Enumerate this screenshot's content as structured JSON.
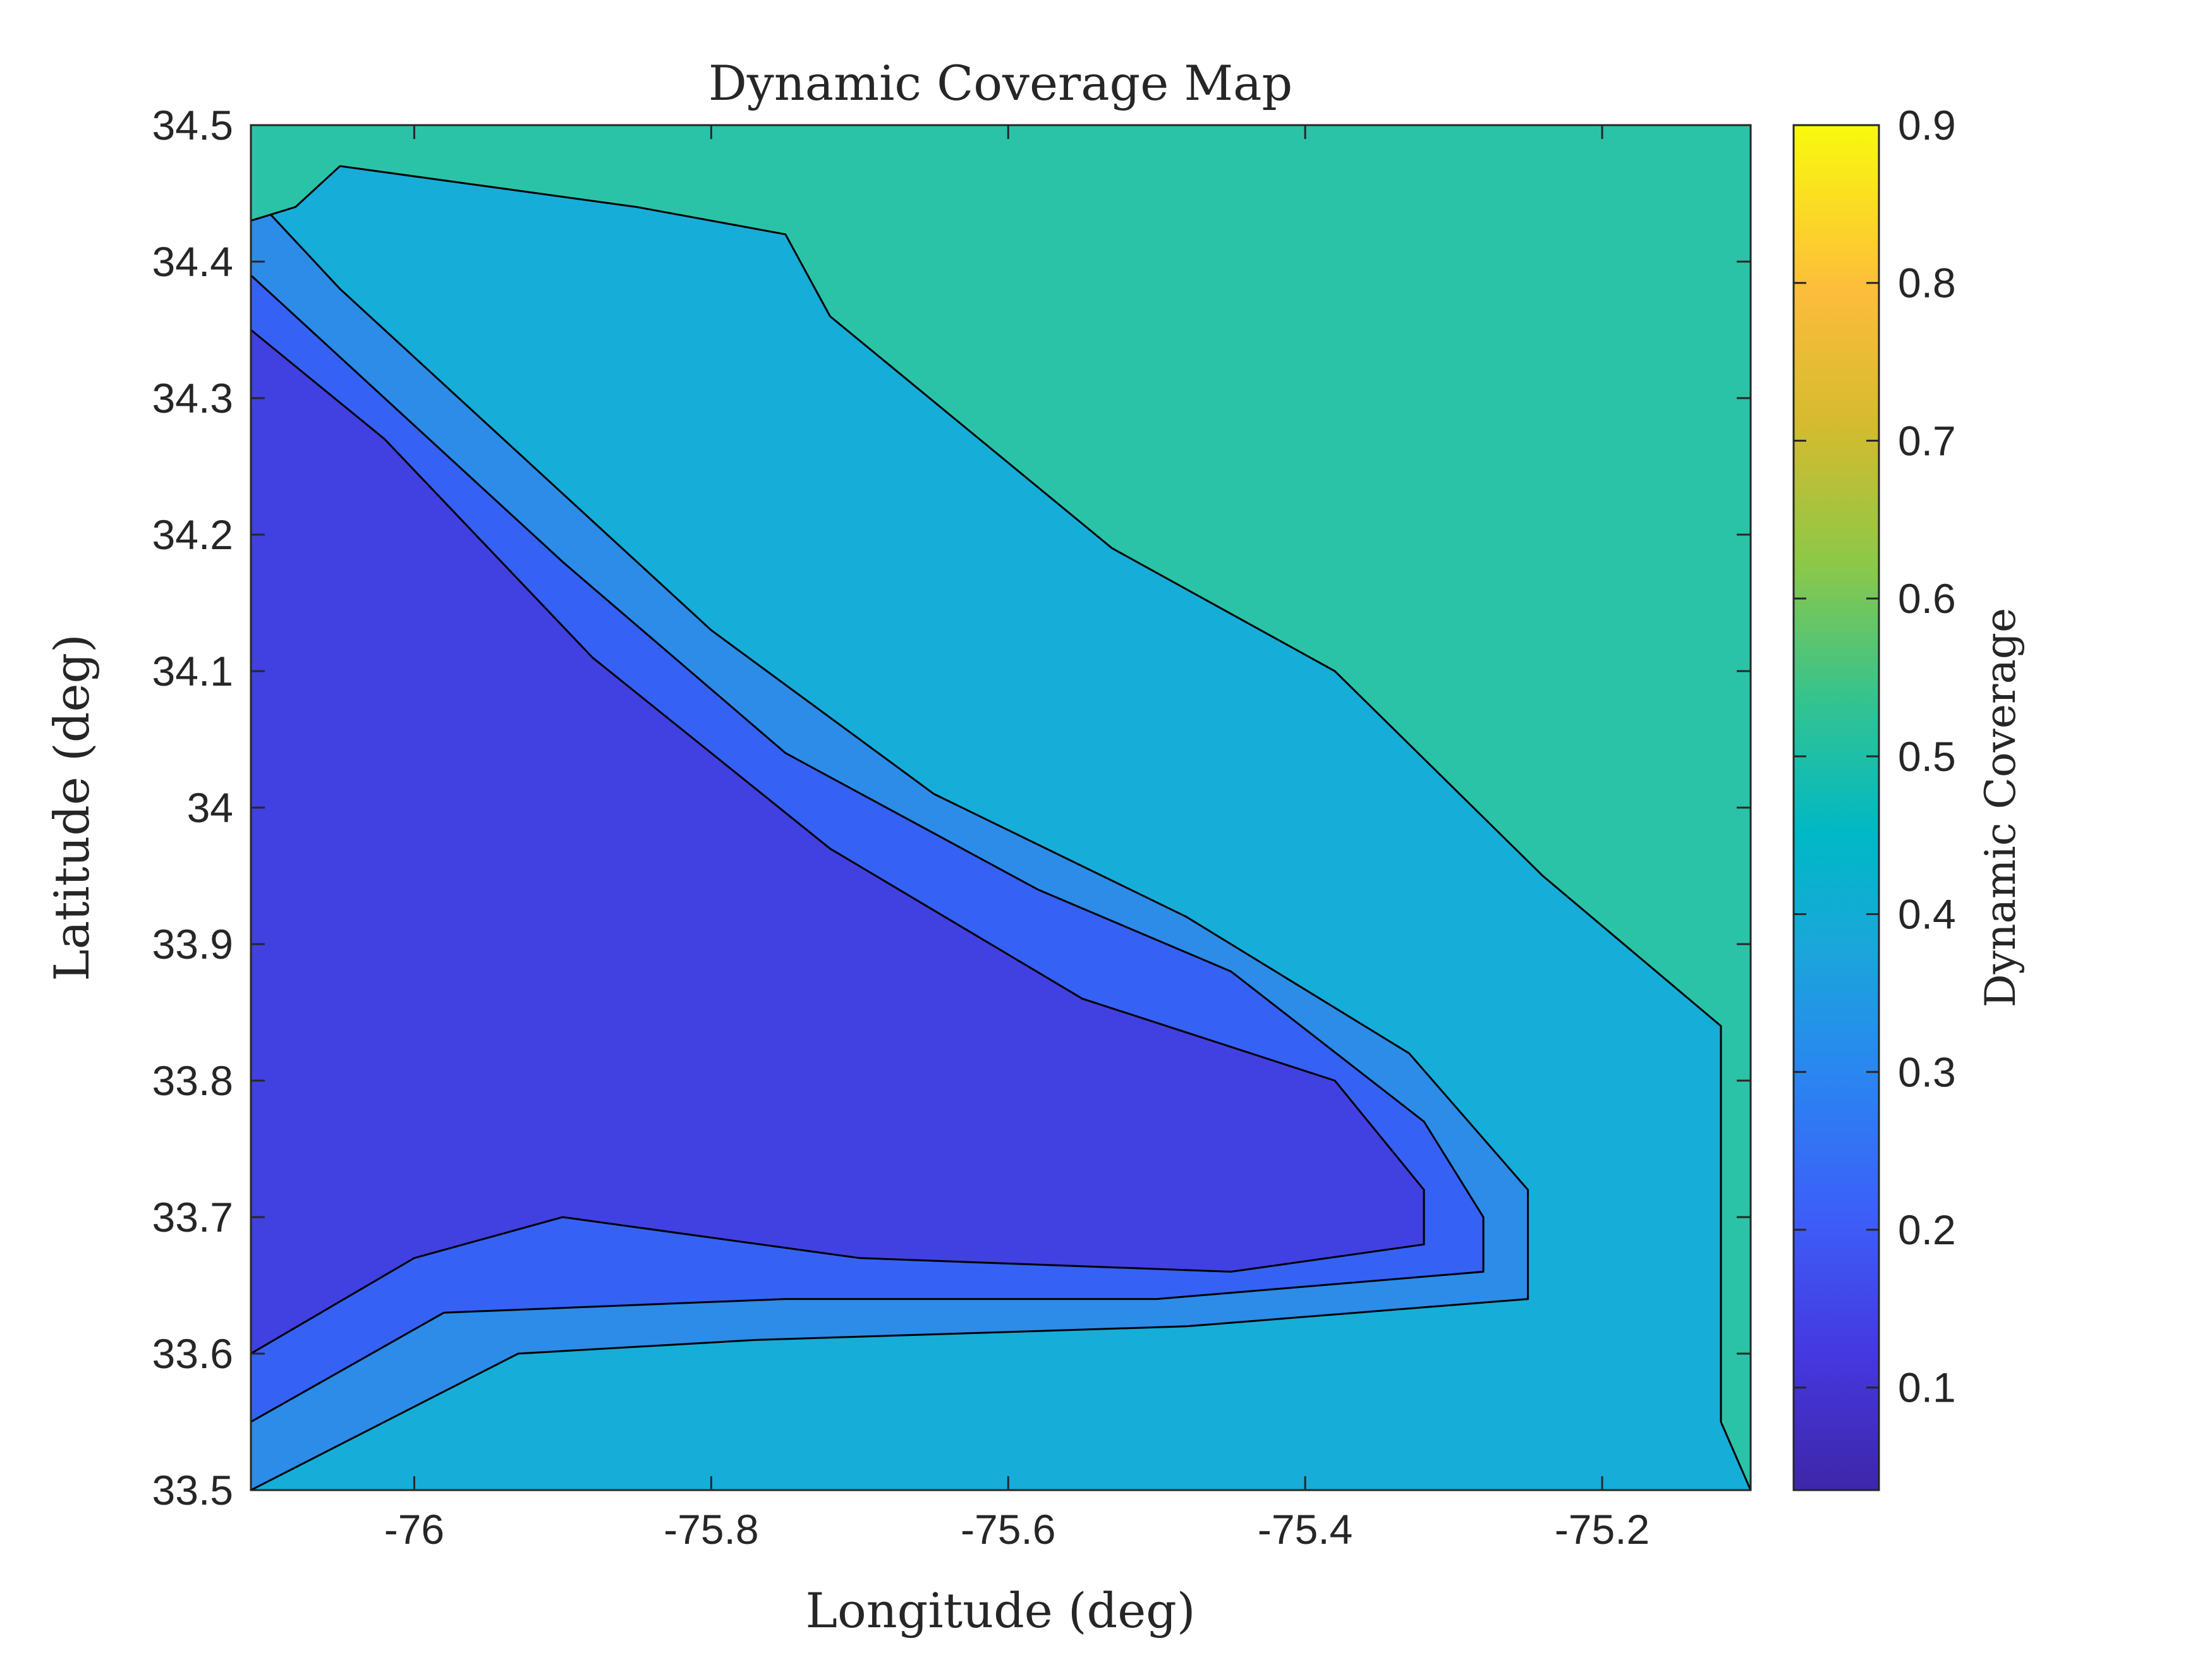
{
  "chart_data": {
    "type": "heatmap",
    "subtype": "filled-contour",
    "title": "Dynamic Coverage Map",
    "xlabel": "Longitude (deg)",
    "ylabel": "Latitude (deg)",
    "xlim": [
      -76.11,
      -75.1
    ],
    "ylim": [
      33.5,
      34.5
    ],
    "xticks": [
      -76,
      -75.8,
      -75.6,
      -75.4,
      -75.2
    ],
    "xtick_labels": [
      "-76",
      "-75.8",
      "-75.6",
      "-75.4",
      "-75.2"
    ],
    "yticks": [
      33.5,
      33.6,
      33.7,
      33.8,
      33.9,
      34,
      34.1,
      34.2,
      34.3,
      34.4,
      34.5
    ],
    "ytick_labels": [
      "33.5",
      "33.6",
      "33.7",
      "33.8",
      "33.9",
      "34",
      "34.1",
      "34.2",
      "34.3",
      "34.4",
      "34.5"
    ],
    "colorbar": {
      "label": "Dynamic Coverage",
      "colormap": "parula",
      "range": [
        0.035,
        0.9
      ],
      "ticks": [
        0.1,
        0.2,
        0.3,
        0.4,
        0.5,
        0.6,
        0.7,
        0.8,
        0.9
      ],
      "tick_labels": [
        "0.1",
        "0.2",
        "0.3",
        "0.4",
        "0.5",
        "0.6",
        "0.7",
        "0.8",
        "0.9"
      ]
    },
    "contour_levels": [
      0.035,
      0.13,
      0.22,
      0.32,
      0.41,
      0.51,
      0.61,
      0.7,
      0.8
    ],
    "level_colors": [
      "#3e2fa8",
      "#4140e0",
      "#3561f5",
      "#2c8ce8",
      "#16add9",
      "#2bc3a7",
      "#6fca5e",
      "#d5bd2f",
      "#fdcb32",
      "#f3f11a"
    ],
    "regions": [
      {
        "level": 1,
        "points": [
          [
            -76.11,
            34.5
          ],
          [
            -75.1,
            34.5
          ],
          [
            -75.1,
            33.5
          ],
          [
            -76.11,
            33.5
          ]
        ]
      },
      {
        "level": 2,
        "points": [
          [
            -76.11,
            34.35
          ],
          [
            -76.02,
            34.27
          ],
          [
            -75.88,
            34.11
          ],
          [
            -75.72,
            33.97
          ],
          [
            -75.55,
            33.86
          ],
          [
            -75.38,
            33.8
          ],
          [
            -75.32,
            33.72
          ],
          [
            -75.32,
            33.7
          ],
          [
            -75.32,
            33.68
          ],
          [
            -75.45,
            33.66
          ],
          [
            -75.7,
            33.67
          ],
          [
            -75.9,
            33.7
          ],
          [
            -76.0,
            33.67
          ],
          [
            -76.11,
            33.6
          ],
          [
            -76.11,
            33.5
          ],
          [
            -75.1,
            33.5
          ],
          [
            -75.1,
            34.5
          ],
          [
            -76.11,
            34.5
          ]
        ]
      },
      {
        "level": 3,
        "points": [
          [
            -76.11,
            34.39
          ],
          [
            -76.03,
            34.31
          ],
          [
            -75.9,
            34.18
          ],
          [
            -75.75,
            34.04
          ],
          [
            -75.58,
            33.94
          ],
          [
            -75.45,
            33.88
          ],
          [
            -75.32,
            33.77
          ],
          [
            -75.28,
            33.7
          ],
          [
            -75.28,
            33.66
          ],
          [
            -75.5,
            33.64
          ],
          [
            -75.75,
            33.64
          ],
          [
            -75.98,
            33.63
          ],
          [
            -76.11,
            33.55
          ],
          [
            -76.11,
            33.5
          ],
          [
            -75.1,
            33.5
          ],
          [
            -75.1,
            34.5
          ],
          [
            -76.11,
            34.5
          ]
        ]
      },
      {
        "level": 4,
        "points": [
          [
            -76.11,
            34.45
          ],
          [
            -76.05,
            34.38
          ],
          [
            -75.93,
            34.26
          ],
          [
            -75.8,
            34.13
          ],
          [
            -75.65,
            34.01
          ],
          [
            -75.48,
            33.92
          ],
          [
            -75.33,
            33.82
          ],
          [
            -75.25,
            33.72
          ],
          [
            -75.25,
            33.64
          ],
          [
            -75.48,
            33.62
          ],
          [
            -75.77,
            33.61
          ],
          [
            -75.93,
            33.6
          ],
          [
            -76.11,
            33.5
          ],
          [
            -75.1,
            33.5
          ],
          [
            -75.1,
            34.5
          ],
          [
            -76.11,
            34.5
          ]
        ]
      },
      {
        "level": 5,
        "points": [
          [
            -76.05,
            34.47
          ],
          [
            -75.85,
            34.44
          ],
          [
            -75.75,
            34.42
          ],
          [
            -75.72,
            34.36
          ],
          [
            -75.53,
            34.19
          ],
          [
            -75.38,
            34.1
          ],
          [
            -75.24,
            33.95
          ],
          [
            -75.12,
            33.84
          ],
          [
            -75.12,
            33.62
          ],
          [
            -75.12,
            33.55
          ],
          [
            -75.1,
            33.5
          ],
          [
            -75.1,
            34.5
          ],
          [
            -76.11,
            34.5
          ],
          [
            -76.11,
            34.43
          ],
          [
            -76.08,
            34.44
          ]
        ]
      }
    ]
  }
}
